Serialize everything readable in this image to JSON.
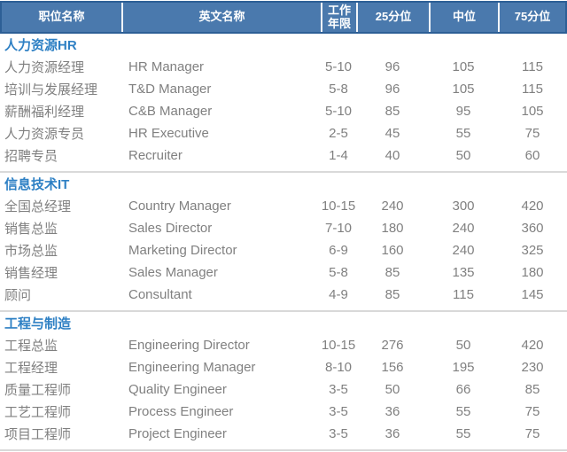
{
  "chart_data": {
    "type": "table",
    "columns": [
      "职位名称",
      "英文名称",
      "工作年限",
      "25分位",
      "中位",
      "75分位"
    ],
    "sections": [
      {
        "title": "人力资源HR",
        "rows": [
          {
            "zh": "人力资源经理",
            "en": "HR Manager",
            "years": "5-10",
            "p25": 96,
            "median": 105,
            "p75": 115
          },
          {
            "zh": "培训与发展经理",
            "en": "T&D Manager",
            "years": "5-8",
            "p25": 96,
            "median": 105,
            "p75": 115
          },
          {
            "zh": "薪酬福利经理",
            "en": "C&B Manager",
            "years": "5-10",
            "p25": 85,
            "median": 95,
            "p75": 105
          },
          {
            "zh": "人力资源专员",
            "en": "HR Executive",
            "years": "2-5",
            "p25": 45,
            "median": 55,
            "p75": 75
          },
          {
            "zh": "招聘专员",
            "en": "Recruiter",
            "years": "1-4",
            "p25": 40,
            "median": 50,
            "p75": 60
          }
        ]
      },
      {
        "title": "信息技术IT",
        "rows": [
          {
            "zh": "全国总经理",
            "en": "Country Manager",
            "years": "10-15",
            "p25": 240,
            "median": 300,
            "p75": 420
          },
          {
            "zh": "销售总监",
            "en": "Sales Director",
            "years": "7-10",
            "p25": 180,
            "median": 240,
            "p75": 360
          },
          {
            "zh": "市场总监",
            "en": "Marketing Director",
            "years": "6-9",
            "p25": 160,
            "median": 240,
            "p75": 325
          },
          {
            "zh": "销售经理",
            "en": "Sales Manager",
            "years": "5-8",
            "p25": 85,
            "median": 135,
            "p75": 180
          },
          {
            "zh": "顾问",
            "en": "Consultant",
            "years": "4-9",
            "p25": 85,
            "median": 115,
            "p75": 145
          }
        ]
      },
      {
        "title": "工程与制造",
        "rows": [
          {
            "zh": "工程总监",
            "en": "Engineering Director",
            "years": "10-15",
            "p25": 276,
            "median": 50,
            "p75": 420
          },
          {
            "zh": "工程经理",
            "en": "Engineering Manager",
            "years": "8-10",
            "p25": 156,
            "median": 195,
            "p75": 230
          },
          {
            "zh": "质量工程师",
            "en": "Quality Engineer",
            "years": "3-5",
            "p25": 50,
            "median": 66,
            "p75": 85
          },
          {
            "zh": "工艺工程师",
            "en": "Process Engineer",
            "years": "3-5",
            "p25": 36,
            "median": 55,
            "p75": 75
          },
          {
            "zh": "项目工程师",
            "en": "Project Engineer",
            "years": "3-5",
            "p25": 36,
            "median": 55,
            "p75": 75
          }
        ]
      }
    ]
  },
  "colors": {
    "header_bg": "#4a79ad",
    "header_border": "#2d5f96",
    "header_text": "#ffffff",
    "section_title": "#2e80c4",
    "body_text": "#808080",
    "divider": "#d9d9d9"
  }
}
